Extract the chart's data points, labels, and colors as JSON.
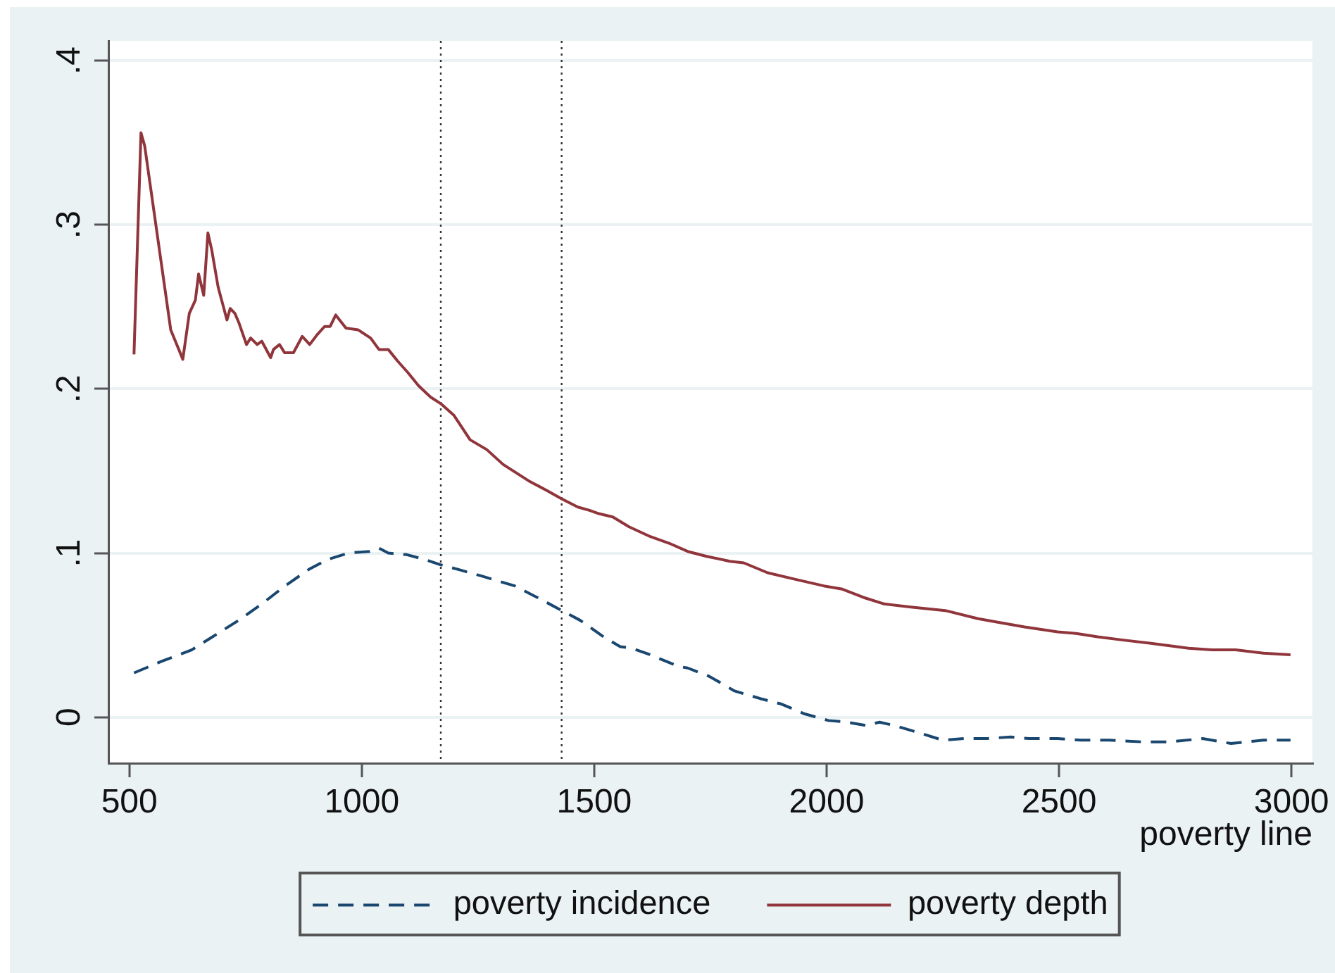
{
  "chart_data": {
    "type": "line",
    "xlabel": "poverty line",
    "series": [
      {
        "name": "poverty incidence",
        "color": "#1a476f",
        "line_style": "dashed",
        "x": [
          510,
          569,
          634,
          679,
          735,
          785,
          835,
          886,
          926,
          971,
          1017,
          1037,
          1057,
          1097,
          1137,
          1168,
          1208,
          1258,
          1329,
          1384,
          1430,
          1470,
          1520,
          1556,
          1581,
          1621,
          1681,
          1701,
          1747,
          1802,
          1862,
          1903,
          1953,
          2004,
          2044,
          2084,
          2114,
          2145,
          2205,
          2250,
          2296,
          2346,
          2396,
          2436,
          2497,
          2547,
          2608,
          2678,
          2739,
          2809,
          2870,
          2940,
          2998
        ],
        "values": [
          0.027,
          0.034,
          0.041,
          0.049,
          0.059,
          0.069,
          0.08,
          0.09,
          0.096,
          0.1,
          0.101,
          0.103,
          0.1,
          0.099,
          0.096,
          0.093,
          0.09,
          0.086,
          0.08,
          0.072,
          0.065,
          0.059,
          0.049,
          0.043,
          0.042,
          0.038,
          0.031,
          0.03,
          0.025,
          0.016,
          0.011,
          0.008,
          0.002,
          -0.002,
          -0.003,
          -0.005,
          -0.003,
          -0.005,
          -0.01,
          -0.014,
          -0.013,
          -0.013,
          -0.012,
          -0.013,
          -0.013,
          -0.014,
          -0.014,
          -0.015,
          -0.015,
          -0.013,
          -0.016,
          -0.014,
          -0.014
        ]
      },
      {
        "name": "poverty depth",
        "color": "#90353b",
        "line_style": "solid",
        "x": [
          510,
          525,
          533,
          589,
          615,
          629,
          642,
          649,
          660,
          669,
          677,
          691,
          710,
          717,
          727,
          736,
          752,
          761,
          775,
          785,
          804,
          810,
          823,
          834,
          853,
          872,
          888,
          904,
          920,
          932,
          944,
          966,
          992,
          1019,
          1037,
          1057,
          1077,
          1099,
          1122,
          1148,
          1170,
          1198,
          1233,
          1269,
          1304,
          1359,
          1399,
          1430,
          1465,
          1490,
          1510,
          1540,
          1575,
          1621,
          1661,
          1701,
          1742,
          1792,
          1822,
          1873,
          1933,
          1994,
          2034,
          2079,
          2124,
          2185,
          2255,
          2326,
          2366,
          2426,
          2497,
          2537,
          2583,
          2638,
          2698,
          2779,
          2829,
          2880,
          2940,
          2998
        ],
        "values": [
          0.221,
          0.356,
          0.348,
          0.236,
          0.218,
          0.246,
          0.254,
          0.27,
          0.257,
          0.295,
          0.285,
          0.262,
          0.242,
          0.249,
          0.246,
          0.24,
          0.227,
          0.231,
          0.227,
          0.229,
          0.219,
          0.224,
          0.227,
          0.222,
          0.222,
          0.232,
          0.227,
          0.233,
          0.238,
          0.238,
          0.245,
          0.237,
          0.236,
          0.231,
          0.224,
          0.224,
          0.217,
          0.21,
          0.202,
          0.195,
          0.191,
          0.184,
          0.169,
          0.163,
          0.154,
          0.144,
          0.138,
          0.133,
          0.128,
          0.126,
          0.124,
          0.122,
          0.116,
          0.11,
          0.106,
          0.101,
          0.098,
          0.095,
          0.094,
          0.088,
          0.084,
          0.08,
          0.078,
          0.073,
          0.069,
          0.067,
          0.065,
          0.06,
          0.058,
          0.055,
          0.052,
          0.051,
          0.049,
          0.047,
          0.045,
          0.042,
          0.041,
          0.041,
          0.039,
          0.038
        ]
      }
    ],
    "xlim": [
      455,
      3045
    ],
    "ylim": [
      -0.028,
      0.412
    ],
    "xticks": [
      500,
      1000,
      1500,
      2000,
      2500,
      3000
    ],
    "yticks": [
      0,
      {
        "value": 0.1,
        "label": ".1"
      },
      {
        "value": 0.2,
        "label": ".2"
      },
      {
        "value": 0.3,
        "label": ".3"
      },
      {
        "value": 0.4,
        "label": ".4"
      }
    ],
    "ref_lines": [
      {
        "axis": "x",
        "value": 1170,
        "color": "#333333",
        "line_style": "dotted"
      },
      {
        "axis": "x",
        "value": 1430,
        "color": "#333333",
        "line_style": "dotted"
      }
    ],
    "grid": "y",
    "legend": "bottom",
    "marker": "none"
  }
}
